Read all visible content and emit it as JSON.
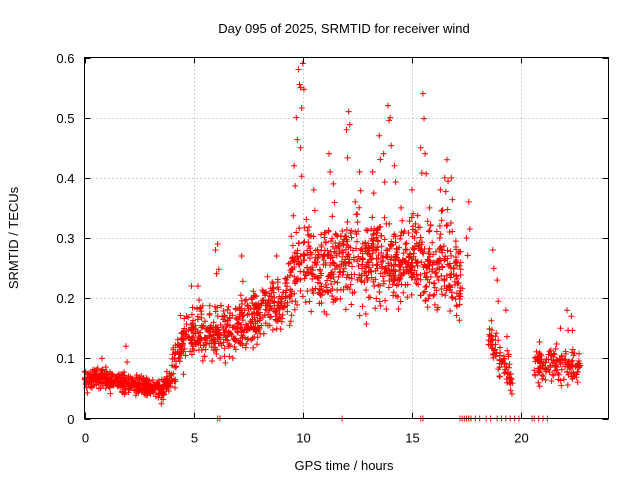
{
  "chart_data": {
    "type": "scatter",
    "title": "Day 095 of 2025, SRMTID for receiver wind",
    "xlabel": "GPS time / hours",
    "ylabel": "SRMTID / TECUs",
    "xlim": [
      0,
      24
    ],
    "ylim": [
      0,
      0.6
    ],
    "x_ticks": [
      0,
      5,
      10,
      15,
      20
    ],
    "y_ticks": [
      0,
      0.1,
      0.2,
      0.3,
      0.4,
      0.5,
      0.6
    ],
    "x_tick_labels": [
      "0",
      "5",
      "10",
      "15",
      "20"
    ],
    "y_tick_labels": [
      "0",
      "0.1",
      "0.2",
      "0.3",
      "0.4",
      "0.5",
      "0.6"
    ],
    "grid": true,
    "marker": "plus",
    "color": "#ff0000",
    "series": [
      {
        "name": "SRMTID",
        "trend": [
          [
            0.0,
            0.06
          ],
          [
            0.5,
            0.07
          ],
          [
            1.0,
            0.065
          ],
          [
            1.5,
            0.06
          ],
          [
            2.0,
            0.06
          ],
          [
            2.5,
            0.055
          ],
          [
            3.0,
            0.055
          ],
          [
            3.5,
            0.045
          ],
          [
            4.0,
            0.07
          ],
          [
            4.3,
            0.12
          ],
          [
            5.0,
            0.14
          ],
          [
            6.0,
            0.14
          ],
          [
            7.0,
            0.15
          ],
          [
            8.0,
            0.17
          ],
          [
            8.5,
            0.19
          ],
          [
            9.0,
            0.18
          ],
          [
            9.5,
            0.24
          ],
          [
            10.0,
            0.27
          ],
          [
            10.5,
            0.25
          ],
          [
            11.0,
            0.25
          ],
          [
            12.0,
            0.27
          ],
          [
            13.0,
            0.26
          ],
          [
            14.0,
            0.25
          ],
          [
            15.0,
            0.26
          ],
          [
            16.0,
            0.25
          ],
          [
            16.5,
            0.27
          ],
          [
            17.0,
            0.25
          ],
          [
            17.3,
            0.2
          ]
        ],
        "segments": [
          [
            18.5,
            19.6,
            0.14
          ],
          [
            20.6,
            22.7,
            0.09
          ]
        ],
        "spikes": [
          [
            9.8,
            0.58
          ],
          [
            9.9,
            0.55
          ],
          [
            10.0,
            0.59
          ],
          [
            9.7,
            0.5
          ],
          [
            9.6,
            0.42
          ],
          [
            9.9,
            0.45
          ],
          [
            11.2,
            0.44
          ],
          [
            11.4,
            0.39
          ],
          [
            12.1,
            0.51
          ],
          [
            12.0,
            0.48
          ],
          [
            12.6,
            0.41
          ],
          [
            13.2,
            0.41
          ],
          [
            13.5,
            0.47
          ],
          [
            13.7,
            0.44
          ],
          [
            13.9,
            0.52
          ],
          [
            14.0,
            0.5
          ],
          [
            14.2,
            0.42
          ],
          [
            15.0,
            0.38
          ],
          [
            15.4,
            0.45
          ],
          [
            15.5,
            0.54
          ],
          [
            15.6,
            0.44
          ],
          [
            16.3,
            0.38
          ],
          [
            16.6,
            0.43
          ],
          [
            16.8,
            0.4
          ],
          [
            16.5,
            0.4
          ],
          [
            17.6,
            0.36
          ],
          [
            10.5,
            0.38
          ],
          [
            12.4,
            0.36
          ],
          [
            14.5,
            0.35
          ],
          [
            15.8,
            0.35
          ],
          [
            8.8,
            0.27
          ],
          [
            6.0,
            0.28
          ],
          [
            6.1,
            0.29
          ],
          [
            7.2,
            0.27
          ],
          [
            4.9,
            0.22
          ],
          [
            5.2,
            0.22
          ],
          [
            0.8,
            0.1
          ],
          [
            1.9,
            0.12
          ],
          [
            18.7,
            0.28
          ],
          [
            18.9,
            0.23
          ],
          [
            19.3,
            0.18
          ],
          [
            22.1,
            0.18
          ],
          [
            22.3,
            0.17
          ],
          [
            21.8,
            0.15
          ],
          [
            20.8,
            0.1
          ],
          [
            17.5,
            0.3
          ]
        ],
        "zeros": [
          6.1,
          6.2,
          11.8,
          15.4,
          15.5,
          17.2,
          17.3,
          17.4,
          17.5,
          17.6,
          17.7,
          17.9,
          18.1,
          18.4,
          18.6,
          18.9,
          19.1,
          19.3,
          19.5,
          19.7,
          19.9,
          20.5,
          20.6,
          20.8,
          21.0,
          21.2
        ]
      }
    ]
  }
}
